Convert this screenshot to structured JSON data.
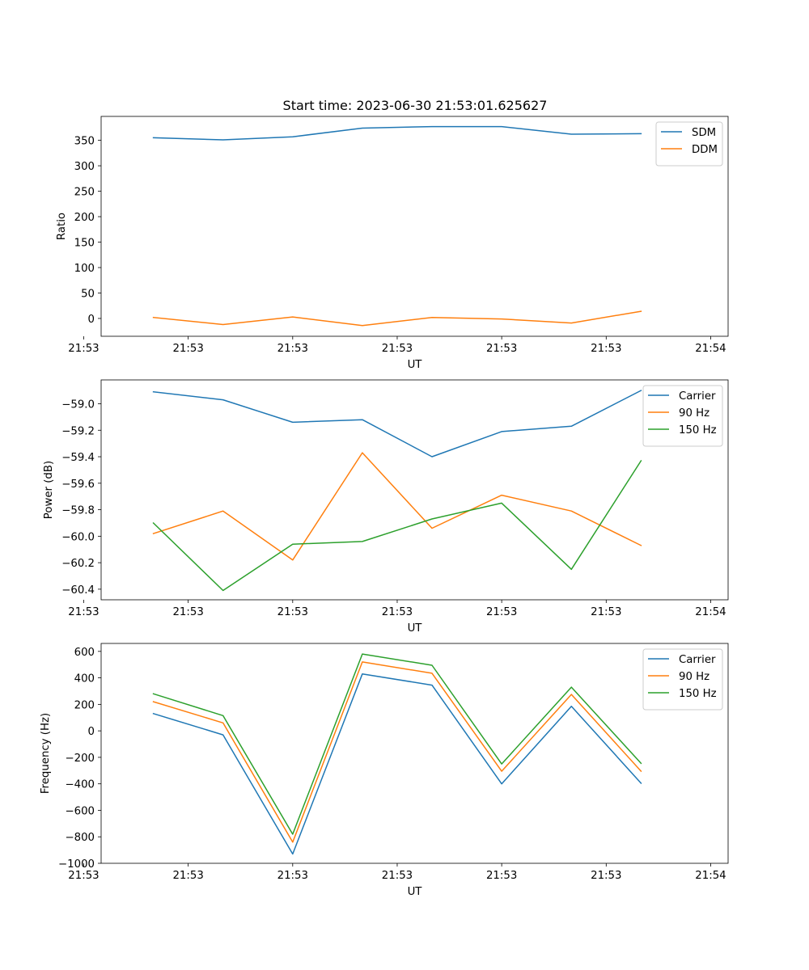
{
  "title": "Start time: 2023-06-30 21:53:01.625627",
  "chart_data": [
    {
      "type": "line",
      "title": "Start time: 2023-06-30 21:53:01.625627",
      "xlabel": "UT",
      "ylabel": "Ratio",
      "x": [
        1,
        2,
        3,
        4,
        5,
        6,
        7,
        8
      ],
      "xlim": [
        0.25,
        9.25
      ],
      "x_ticks": [
        0,
        1.5,
        3,
        4.5,
        6,
        7.5,
        9
      ],
      "x_tick_labels": [
        "21:53",
        "21:53",
        "21:53",
        "21:53",
        "21:53",
        "21:53",
        "21:54"
      ],
      "ylim": [
        -35,
        397
      ],
      "y_ticks": [
        0,
        50,
        100,
        150,
        200,
        250,
        300,
        350
      ],
      "y_tick_labels": [
        "0",
        "50",
        "100",
        "150",
        "200",
        "250",
        "300",
        "350"
      ],
      "legend": "top-right",
      "grid": false,
      "series": [
        {
          "name": "SDM",
          "color": "#1f77b4",
          "values": [
            355,
            351,
            357,
            374,
            377,
            377,
            362,
            363
          ]
        },
        {
          "name": "DDM",
          "color": "#ff7f0e",
          "values": [
            2,
            -12,
            3,
            -14,
            2,
            -1,
            -9,
            14
          ]
        }
      ]
    },
    {
      "type": "line",
      "title": "",
      "xlabel": "UT",
      "ylabel": "Power (dB)",
      "x": [
        1,
        2,
        3,
        4,
        5,
        6,
        7,
        8
      ],
      "xlim": [
        0.25,
        9.25
      ],
      "x_ticks": [
        0,
        1.5,
        3,
        4.5,
        6,
        7.5,
        9
      ],
      "x_tick_labels": [
        "21:53",
        "21:53",
        "21:53",
        "21:53",
        "21:53",
        "21:53",
        "21:54"
      ],
      "ylim": [
        -60.48,
        -58.82
      ],
      "y_ticks": [
        -60.4,
        -60.2,
        -60.0,
        -59.8,
        -59.6,
        -59.4,
        -59.2,
        -59.0
      ],
      "y_tick_labels": [
        "−60.4",
        "−60.2",
        "−60.0",
        "−59.8",
        "−59.6",
        "−59.4",
        "−59.2",
        "−59.0"
      ],
      "legend": "top-right",
      "grid": false,
      "series": [
        {
          "name": "Carrier",
          "color": "#1f77b4",
          "values": [
            -58.91,
            -58.97,
            -59.14,
            -59.12,
            -59.4,
            -59.21,
            -59.17,
            -58.9
          ]
        },
        {
          "name": "90 Hz",
          "color": "#ff7f0e",
          "values": [
            -59.98,
            -59.81,
            -60.18,
            -59.37,
            -59.94,
            -59.69,
            -59.81,
            -60.07
          ]
        },
        {
          "name": "150 Hz",
          "color": "#2ca02c",
          "values": [
            -59.9,
            -60.41,
            -60.06,
            -60.04,
            -59.87,
            -59.75,
            -60.25,
            -59.43
          ]
        }
      ]
    },
    {
      "type": "line",
      "title": "",
      "xlabel": "UT",
      "ylabel": "Frequency (Hz)",
      "x": [
        1,
        2,
        3,
        4,
        5,
        6,
        7,
        8
      ],
      "xlim": [
        0.25,
        9.25
      ],
      "x_ticks": [
        0,
        1.5,
        3,
        4.5,
        6,
        7.5,
        9
      ],
      "x_tick_labels": [
        "21:53",
        "21:53",
        "21:53",
        "21:53",
        "21:53",
        "21:53",
        "21:54"
      ],
      "ylim": [
        -1000,
        660
      ],
      "y_ticks": [
        -1000,
        -800,
        -600,
        -400,
        -200,
        0,
        200,
        400,
        600
      ],
      "y_tick_labels": [
        "−1000",
        "−800",
        "−600",
        "−400",
        "−200",
        "0",
        "200",
        "400",
        "600"
      ],
      "legend": "top-right",
      "grid": false,
      "series": [
        {
          "name": "Carrier",
          "color": "#1f77b4",
          "values": [
            130,
            -30,
            -930,
            430,
            345,
            -400,
            185,
            -395
          ]
        },
        {
          "name": "90 Hz",
          "color": "#ff7f0e",
          "values": [
            220,
            60,
            -840,
            520,
            435,
            -305,
            275,
            -305
          ]
        },
        {
          "name": "150 Hz",
          "color": "#2ca02c",
          "values": [
            280,
            115,
            -780,
            580,
            495,
            -250,
            330,
            -245
          ]
        }
      ]
    }
  ]
}
